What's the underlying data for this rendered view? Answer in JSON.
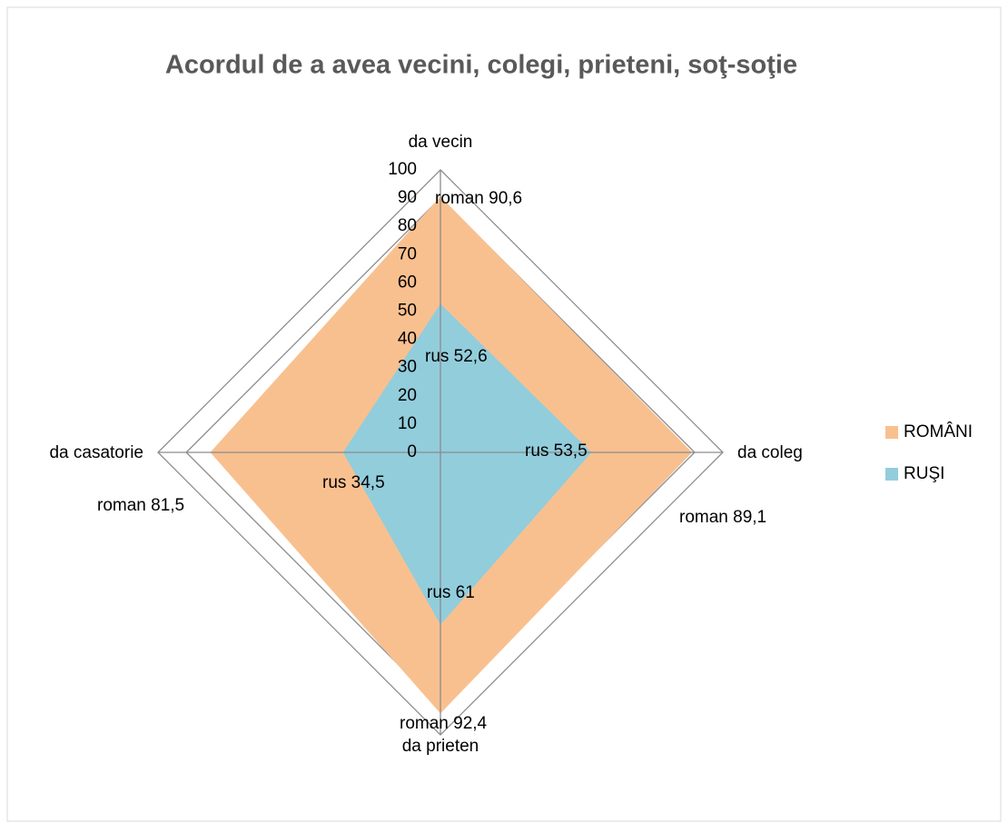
{
  "chart_data": {
    "type": "radar",
    "title": "Acordul de a avea vecini, colegi, prieteni, soţ-soţie",
    "categories": [
      "da vecin",
      "da coleg",
      "da prieten",
      "da casatorie"
    ],
    "series": [
      {
        "name": "ROMÂNI",
        "color": "#f9c08f",
        "values": [
          90.6,
          89.1,
          92.4,
          81.5
        ],
        "value_labels": [
          "roman 90,6",
          "roman 89,1",
          "roman 92,4",
          "roman 81,5"
        ]
      },
      {
        "name": "RUŞI",
        "color": "#92cddc",
        "values": [
          52.6,
          53.5,
          61,
          34.5
        ],
        "value_labels": [
          "rus 52,6",
          "rus 53,5",
          "rus 61",
          "rus 34,5"
        ]
      }
    ],
    "ylim": [
      0,
      100
    ],
    "yticks": [
      0,
      10,
      20,
      30,
      40,
      50,
      60,
      70,
      80,
      90,
      100
    ],
    "legend": "right"
  }
}
